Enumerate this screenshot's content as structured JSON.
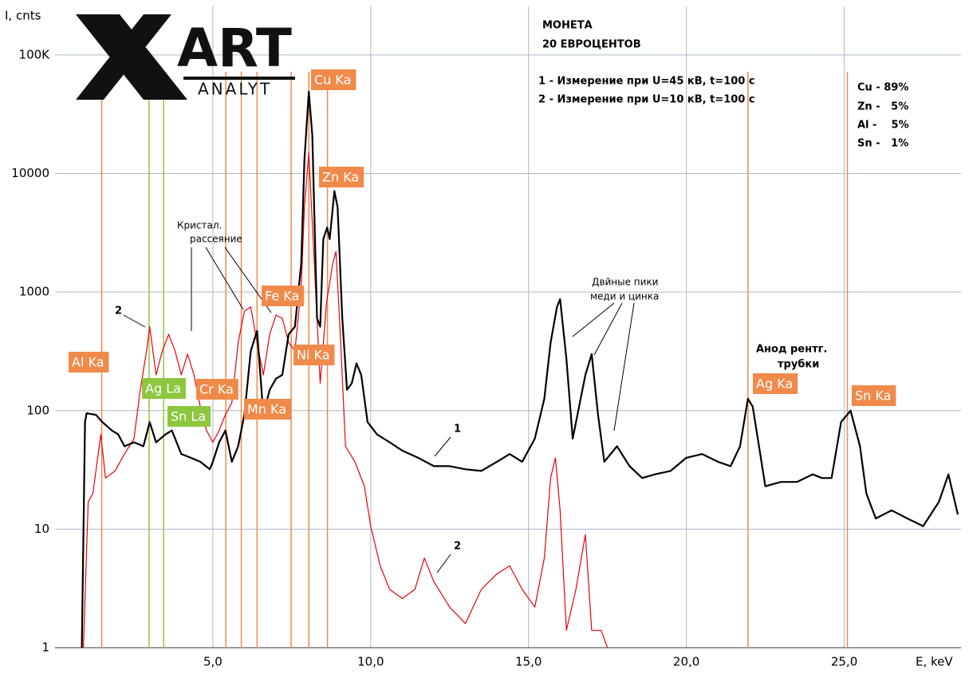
{
  "logo": {
    "mark": "ART",
    "subtitle": "ANALYT"
  },
  "chart_data": {
    "type": "line",
    "x_label": "E, keV",
    "y_label": "I, cnts",
    "xlim": [
      0,
      28.7
    ],
    "xticks": [
      {
        "value": 5,
        "label": "5,0"
      },
      {
        "value": 10,
        "label": "10,0"
      },
      {
        "value": 15,
        "label": "15,0"
      },
      {
        "value": 20,
        "label": "20,0"
      },
      {
        "value": 25,
        "label": "25,0"
      }
    ],
    "ylim": [
      1,
      257000
    ],
    "yticks": [
      1,
      10,
      100,
      1000,
      10000,
      {
        "value": 100000,
        "label": "100K"
      }
    ],
    "log_y": true,
    "grid": true,
    "series": [
      {
        "name": "1",
        "color": "#000000",
        "x": [
          0.85,
          0.95,
          1.0,
          1.3,
          1.5,
          1.8,
          2.0,
          2.2,
          2.5,
          2.8,
          3.0,
          3.2,
          3.5,
          3.7,
          4.0,
          4.3,
          4.6,
          4.9,
          5.0,
          5.2,
          5.4,
          5.6,
          5.8,
          6.0,
          6.2,
          6.4,
          6.6,
          6.8,
          7.0,
          7.2,
          7.4,
          7.6,
          7.8,
          7.9,
          8.04,
          8.15,
          8.3,
          8.4,
          8.5,
          8.62,
          8.7,
          8.85,
          8.95,
          9.1,
          9.25,
          9.4,
          9.55,
          9.7,
          9.9,
          10.2,
          10.6,
          11.0,
          11.5,
          12.0,
          12.5,
          13.0,
          13.5,
          14.0,
          14.4,
          14.8,
          15.2,
          15.5,
          15.7,
          15.9,
          16.0,
          16.2,
          16.4,
          16.6,
          16.8,
          17.0,
          17.2,
          17.4,
          17.8,
          18.2,
          18.6,
          19.0,
          19.5,
          20.0,
          20.5,
          21.0,
          21.4,
          21.7,
          21.95,
          22.1,
          22.3,
          22.5,
          23.0,
          23.5,
          24.0,
          24.3,
          24.6,
          24.9,
          25.2,
          25.5,
          25.7,
          26.0,
          26.5,
          27.0,
          27.5,
          28.0,
          28.3,
          28.6
        ],
        "values": [
          1,
          80,
          95,
          92,
          80,
          68,
          63,
          50,
          54,
          50,
          80,
          54,
          63,
          68,
          43,
          40,
          37,
          32,
          37,
          54,
          68,
          37,
          50,
          93,
          318,
          470,
          93,
          150,
          186,
          200,
          440,
          510,
          1750,
          13000,
          49000,
          21000,
          600,
          510,
          2800,
          3500,
          2800,
          7100,
          5200,
          600,
          150,
          170,
          250,
          200,
          80,
          63,
          54,
          46,
          40,
          34,
          34,
          32,
          31,
          37,
          43,
          37,
          58,
          126,
          375,
          750,
          870,
          273,
          58,
          108,
          200,
          300,
          93,
          37,
          50,
          34,
          27,
          29,
          31,
          40,
          43,
          37,
          34,
          50,
          126,
          108,
          50,
          23,
          25,
          25,
          29,
          27,
          27,
          80,
          100,
          50,
          20,
          12.3,
          14.4,
          12.3,
          10.6,
          17,
          29,
          13.3
        ]
      },
      {
        "name": "2",
        "color": "#e8000b",
        "x": [
          0.9,
          1.05,
          1.2,
          1.45,
          1.6,
          1.9,
          2.2,
          2.5,
          2.7,
          2.9,
          3.0,
          3.2,
          3.4,
          3.6,
          3.8,
          4.0,
          4.2,
          4.4,
          4.6,
          4.8,
          5.0,
          5.2,
          5.4,
          5.6,
          5.8,
          6.0,
          6.2,
          6.4,
          6.6,
          6.8,
          7.0,
          7.2,
          7.4,
          7.6,
          7.8,
          7.9,
          8.04,
          8.2,
          8.4,
          8.6,
          8.8,
          8.9,
          9.05,
          9.2,
          9.5,
          9.8,
          10.0,
          10.3,
          10.6,
          11.0,
          11.4,
          11.7,
          12.0,
          12.5,
          13.0,
          13.5,
          14.0,
          14.4,
          14.8,
          15.2,
          15.5,
          15.7,
          15.85,
          16.0,
          16.2,
          16.5,
          16.8,
          17.0,
          17.3,
          17.5
        ],
        "values": [
          1,
          17,
          20,
          63,
          27,
          31,
          43,
          58,
          150,
          320,
          510,
          200,
          320,
          440,
          320,
          200,
          300,
          200,
          108,
          68,
          54,
          68,
          93,
          116,
          375,
          690,
          750,
          375,
          200,
          440,
          640,
          600,
          375,
          320,
          1100,
          5200,
          15000,
          2050,
          170,
          810,
          1750,
          2200,
          375,
          50,
          37,
          23,
          10.6,
          4.9,
          3.1,
          2.6,
          3.1,
          5.7,
          3.6,
          2.2,
          1.6,
          3.1,
          4.2,
          4.9,
          3.1,
          2.2,
          5.7,
          27,
          40,
          14.4,
          1.4,
          3.1,
          9,
          1.4,
          1.4,
          1
        ]
      }
    ],
    "element_lines": [
      {
        "label": "Al Ka",
        "energy": 1.48,
        "color": "#f08a4b"
      },
      {
        "label": "Ag La",
        "energy": 2.98,
        "color": "#8dc63f"
      },
      {
        "label": "Sn La",
        "energy": 3.44,
        "color": "#8dc63f"
      },
      {
        "label": "Cr Ka",
        "energy": 5.41,
        "color": "#f08a4b"
      },
      {
        "label": "Mn Ka",
        "energy": 5.9,
        "color": "#f08a4b"
      },
      {
        "label": "Fe Ka",
        "energy": 6.4,
        "color": "#f08a4b"
      },
      {
        "label": "Ni Ka",
        "energy": 7.48,
        "color": "#f08a4b"
      },
      {
        "label": "Cu Ka",
        "energy": 8.04,
        "color": "#f08a4b"
      },
      {
        "label": "Zn Ka",
        "energy": 8.63,
        "color": "#f08a4b"
      },
      {
        "label": "Ag Ka",
        "energy": 21.95,
        "color": "#f08a4b"
      },
      {
        "label": "Sn Ka",
        "energy": 25.1,
        "color": "#f08a4b"
      }
    ],
    "title": [
      "МОНЕТА",
      "20 ЕВРОЦЕНТОВ"
    ],
    "legend": [
      "1 - Измерение при U=45 кВ, t=100 с",
      "2 - Измерение при U=10 кВ, t=100 с"
    ],
    "composition": [
      "Cu - 89%",
      "Zn -   5%",
      "Al -    5%",
      "Sn -   1%"
    ],
    "annotations": {
      "scatter": [
        "Кристал.",
        "рассеяние"
      ],
      "double_peaks": [
        "Двйные пики",
        "меди и цинка"
      ],
      "anode": [
        "Анод рентг.",
        "трубки"
      ]
    }
  }
}
